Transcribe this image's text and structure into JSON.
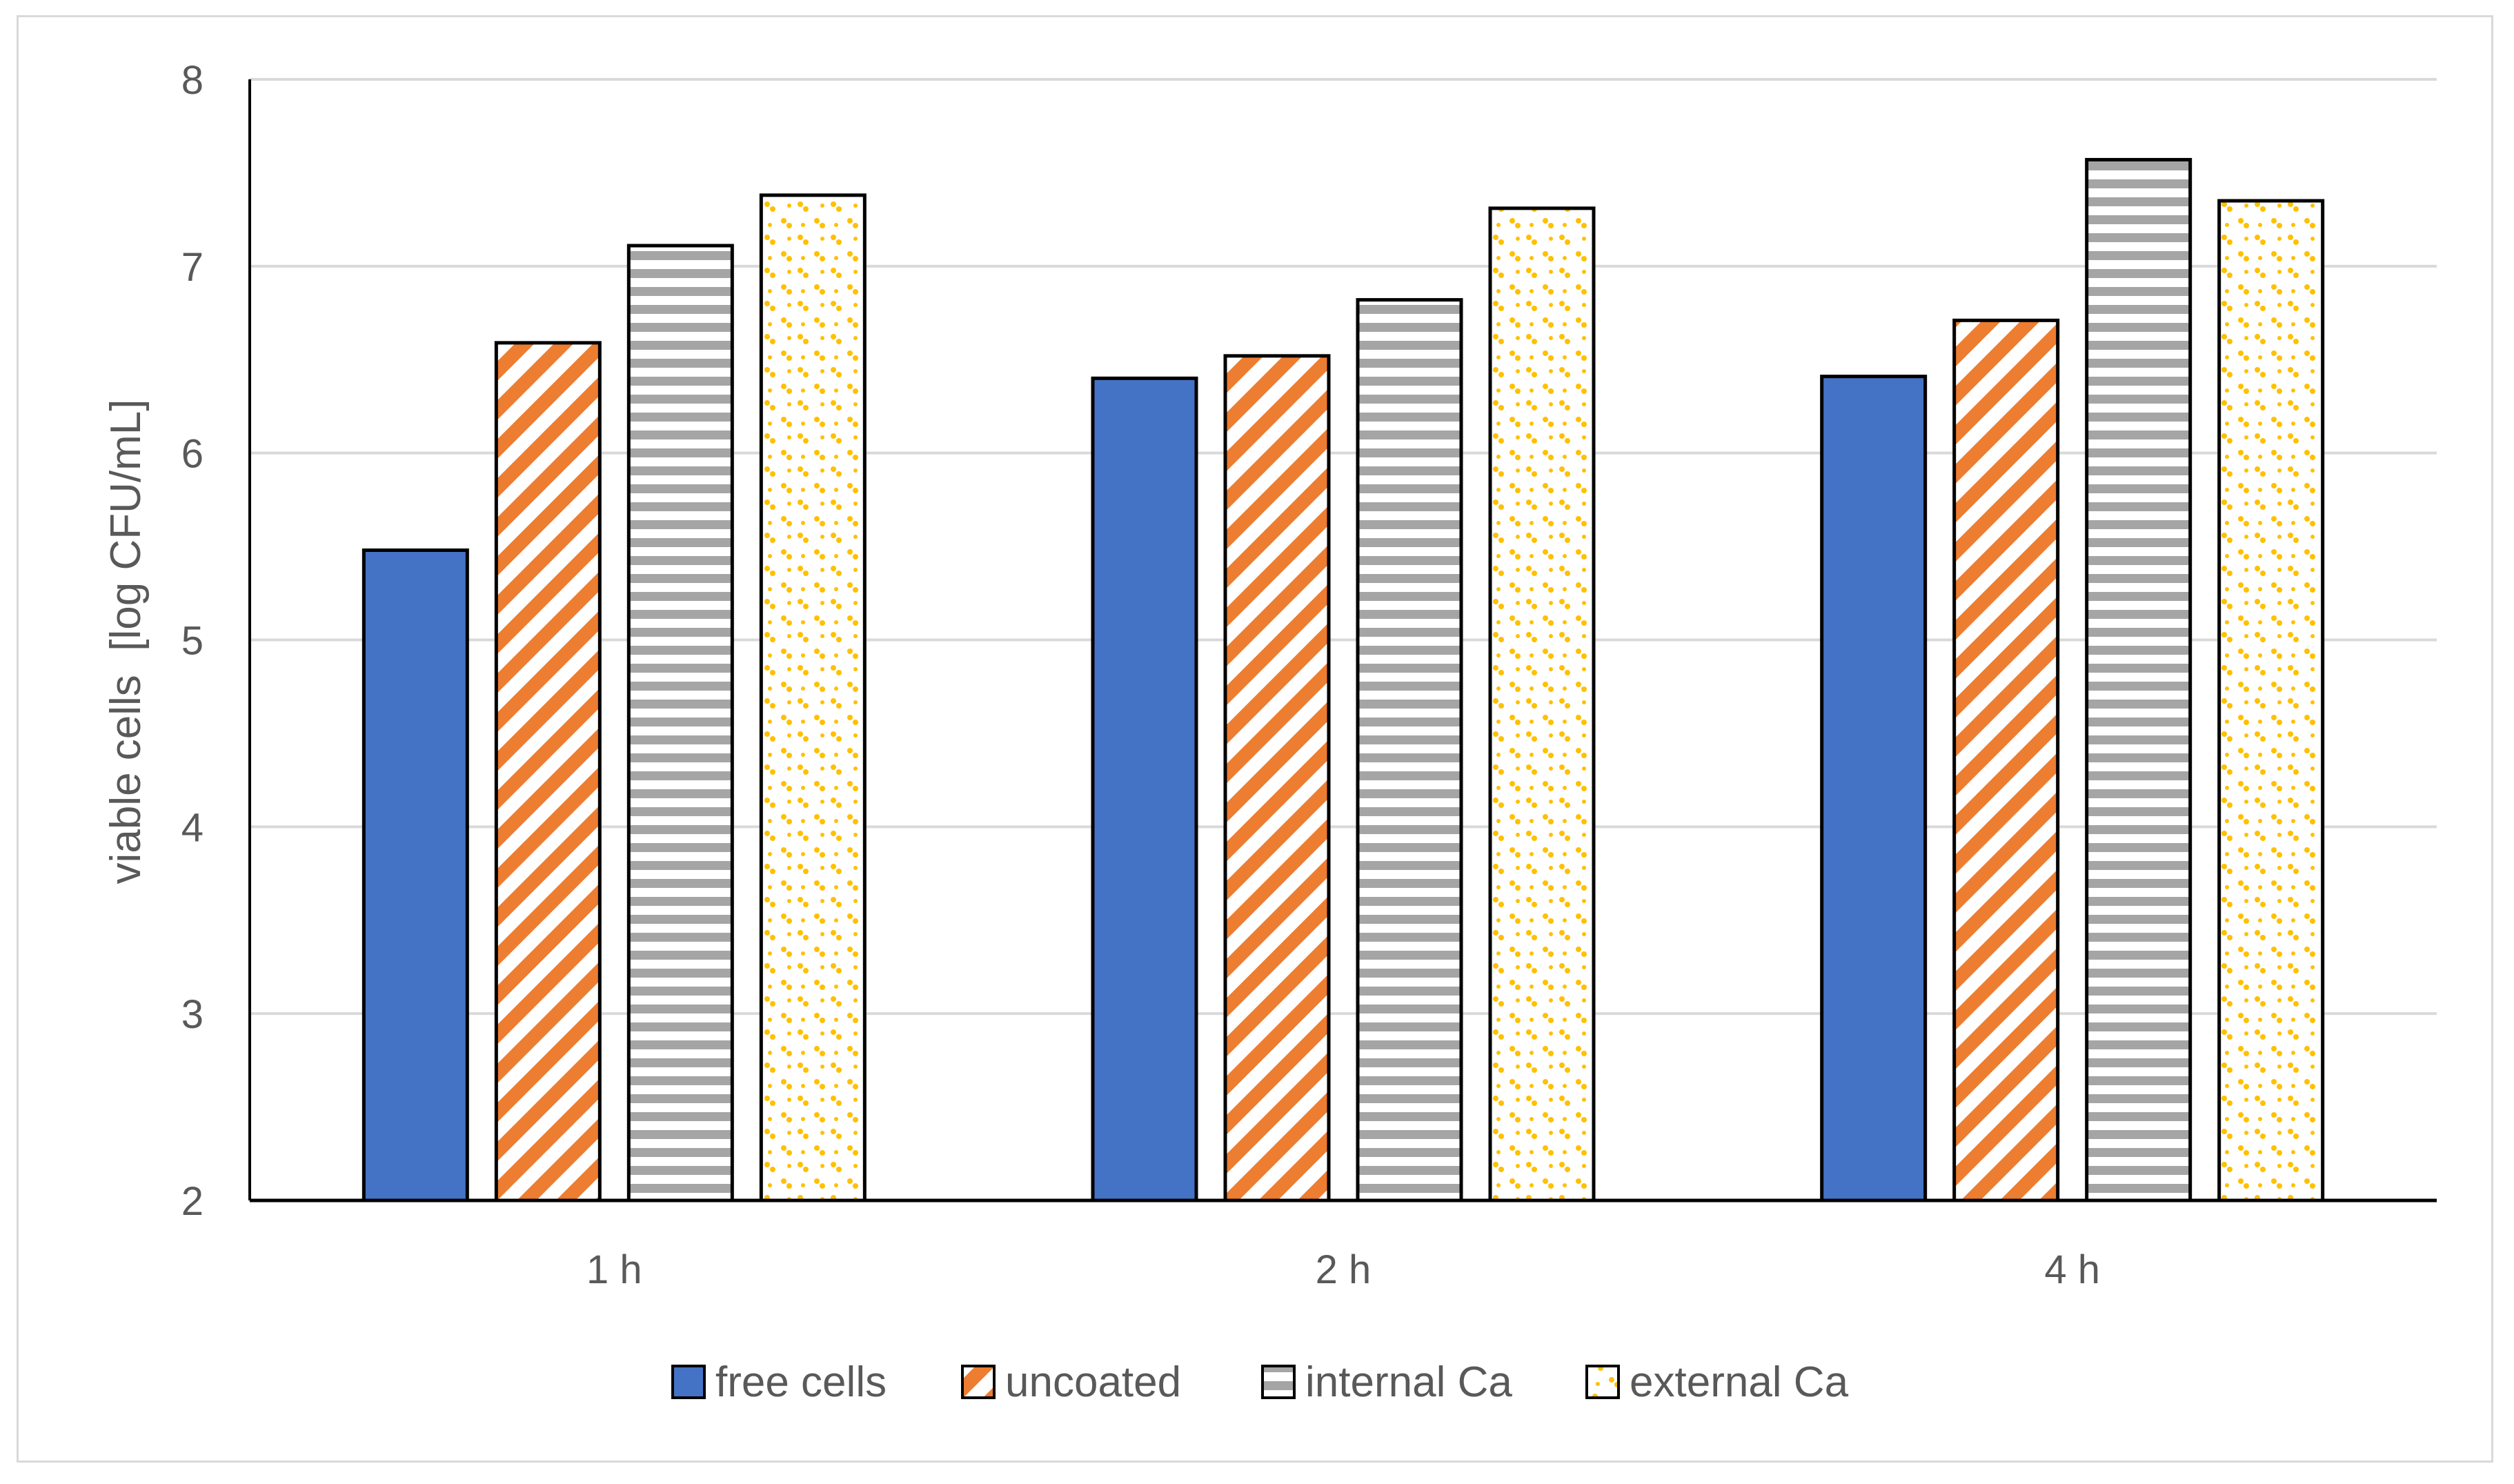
{
  "chart_data": {
    "type": "bar",
    "categories": [
      "1 h",
      "2 h",
      "4 h"
    ],
    "series": [
      {
        "name": "free cells",
        "values": [
          5.48,
          6.4,
          6.41
        ],
        "pattern": "solid",
        "color": "#4472C4"
      },
      {
        "name": "uncoated",
        "values": [
          6.59,
          6.52,
          6.71
        ],
        "pattern": "diagonal",
        "color": "#ED7D31"
      },
      {
        "name": "internal Ca",
        "values": [
          7.11,
          6.82,
          7.57
        ],
        "pattern": "horizontal",
        "color": "#A5A5A5"
      },
      {
        "name": "external Ca",
        "values": [
          7.38,
          7.31,
          7.35
        ],
        "pattern": "dots",
        "color": "#FFC000"
      }
    ],
    "title": "",
    "xlabel": "",
    "ylabel": "viable cells  [log CFU/mL]",
    "ylim": [
      2,
      8
    ],
    "yticks": [
      "2",
      "3",
      "4",
      "5",
      "6",
      "7",
      "8"
    ],
    "grid": true,
    "legend_position": "bottom"
  }
}
